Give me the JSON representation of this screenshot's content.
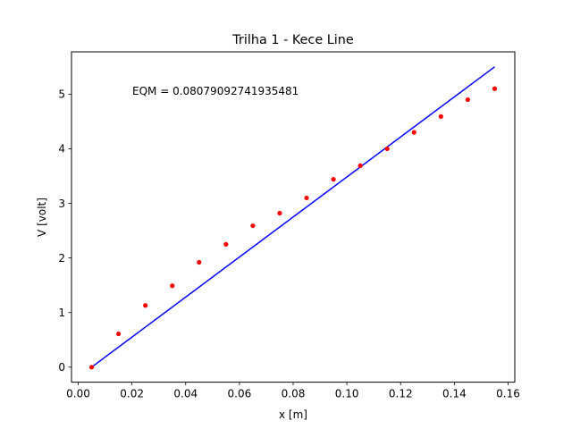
{
  "chart_data": {
    "type": "scatter",
    "title": "Trilha 1 - Kece Line",
    "xlabel": "x [m]",
    "ylabel": "V [volt]",
    "xlim": [
      -0.0025,
      0.1625
    ],
    "ylim": [
      -0.275,
      5.775
    ],
    "xticks": [
      0.0,
      0.02,
      0.04,
      0.06,
      0.08,
      0.1,
      0.12,
      0.14,
      0.16
    ],
    "xtick_labels": [
      "0.00",
      "0.02",
      "0.04",
      "0.06",
      "0.08",
      "0.10",
      "0.12",
      "0.14",
      "0.16"
    ],
    "yticks": [
      0,
      1,
      2,
      3,
      4,
      5
    ],
    "ytick_labels": [
      "0",
      "1",
      "2",
      "3",
      "4",
      "5"
    ],
    "grid": false,
    "annotation": "EQM = 0.08079092741935481",
    "series": [
      {
        "kind": "scatter",
        "color": "#ff0000",
        "x": [
          0.005,
          0.015,
          0.025,
          0.035,
          0.045,
          0.055,
          0.065,
          0.075,
          0.085,
          0.095,
          0.105,
          0.115,
          0.125,
          0.135,
          0.145,
          0.155
        ],
        "y": [
          0.0,
          0.61,
          1.13,
          1.49,
          1.92,
          2.25,
          2.59,
          2.82,
          3.1,
          3.44,
          3.69,
          4.0,
          4.3,
          4.59,
          4.9,
          5.1
        ]
      },
      {
        "kind": "line",
        "color": "#0000ff",
        "x": [
          0.005,
          0.155
        ],
        "y": [
          0.0,
          5.5
        ]
      }
    ]
  }
}
